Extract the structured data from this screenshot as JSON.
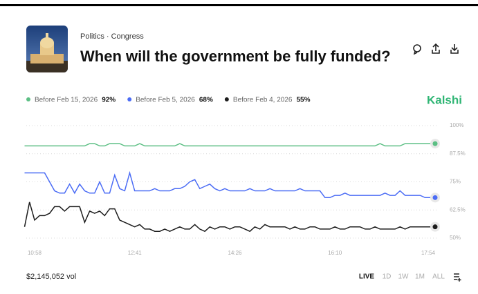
{
  "header": {
    "breadcrumb": "Politics · Congress",
    "title": "When will the government be fully funded?",
    "brand": "Kalshi"
  },
  "chart_data": {
    "type": "line",
    "grid": true,
    "ylim": [
      48,
      102
    ],
    "yticks": [
      {
        "value": 100,
        "label": "100%"
      },
      {
        "value": 87.5,
        "label": "87.5%"
      },
      {
        "value": 75,
        "label": "75%"
      },
      {
        "value": 62.5,
        "label": "62.5%"
      },
      {
        "value": 50,
        "label": "50%"
      }
    ],
    "categories": [
      null,
      null,
      "10:58",
      null,
      null,
      null,
      null,
      null,
      null,
      null,
      null,
      null,
      null,
      null,
      null,
      null,
      null,
      null,
      null,
      null,
      null,
      null,
      "12:41",
      null,
      null,
      null,
      null,
      null,
      null,
      null,
      null,
      null,
      null,
      null,
      null,
      null,
      null,
      null,
      null,
      null,
      null,
      null,
      "14:26",
      null,
      null,
      null,
      null,
      null,
      null,
      null,
      null,
      null,
      null,
      null,
      null,
      null,
      null,
      null,
      null,
      null,
      null,
      null,
      "16:10",
      null,
      null,
      null,
      null,
      null,
      null,
      null,
      null,
      null,
      null,
      null,
      null,
      null,
      null,
      null,
      null,
      null,
      null,
      null,
      "17:54"
    ],
    "series": [
      {
        "name": "Before Feb 15, 2026",
        "color": "#5cbf84",
        "value_label": "92%",
        "values": [
          91,
          91,
          91,
          91,
          91,
          91,
          91,
          91,
          91,
          91,
          91,
          91,
          91,
          92,
          92,
          91,
          91,
          92,
          92,
          92,
          91,
          91,
          91,
          92,
          91,
          91,
          91,
          91,
          91,
          91,
          91,
          92,
          91,
          91,
          91,
          91,
          91,
          91,
          91,
          91,
          91,
          91,
          91,
          91,
          91,
          91,
          91,
          91,
          91,
          91,
          91,
          91,
          91,
          91,
          91,
          91,
          91,
          91,
          91,
          91,
          91,
          91,
          91,
          91,
          91,
          91,
          91,
          91,
          91,
          91,
          91,
          92,
          91,
          91,
          91,
          91,
          92,
          92,
          92,
          92,
          92,
          92,
          92
        ]
      },
      {
        "name": "Before Feb 5, 2026",
        "color": "#4b6cf5",
        "value_label": "68%",
        "values": [
          79,
          79,
          79,
          79,
          79,
          75,
          71,
          70,
          70,
          74,
          70,
          74,
          71,
          70,
          70,
          75,
          70,
          70,
          78,
          72,
          71,
          79,
          71,
          71,
          71,
          71,
          72,
          71,
          71,
          71,
          72,
          72,
          73,
          75,
          76,
          72,
          73,
          74,
          72,
          71,
          72,
          71,
          71,
          71,
          71,
          72,
          71,
          71,
          71,
          72,
          71,
          71,
          71,
          71,
          71,
          72,
          71,
          71,
          71,
          71,
          68,
          68,
          69,
          69,
          70,
          69,
          69,
          69,
          69,
          69,
          69,
          69,
          70,
          69,
          69,
          71,
          69,
          69,
          69,
          69,
          68,
          68,
          68
        ]
      },
      {
        "name": "Before Feb 4, 2026",
        "color": "#1c1c1c",
        "value_label": "55%",
        "values": [
          55,
          66,
          58,
          60,
          60,
          61,
          64,
          64,
          62,
          64,
          64,
          64,
          57,
          62,
          61,
          62,
          60,
          63,
          63,
          58,
          57,
          56,
          55,
          56,
          54,
          54,
          53,
          53,
          54,
          53,
          54,
          55,
          54,
          54,
          56,
          54,
          53,
          55,
          54,
          55,
          55,
          54,
          55,
          55,
          54,
          53,
          55,
          54,
          56,
          55,
          55,
          55,
          55,
          54,
          55,
          54,
          54,
          55,
          55,
          54,
          54,
          54,
          55,
          54,
          54,
          55,
          55,
          55,
          54,
          54,
          55,
          54,
          54,
          54,
          54,
          55,
          54,
          55,
          55,
          55,
          55,
          55,
          55
        ]
      }
    ]
  },
  "footer": {
    "volume": "$2,145,052 vol",
    "ranges": [
      "LIVE",
      "1D",
      "1W",
      "1M",
      "ALL"
    ]
  }
}
